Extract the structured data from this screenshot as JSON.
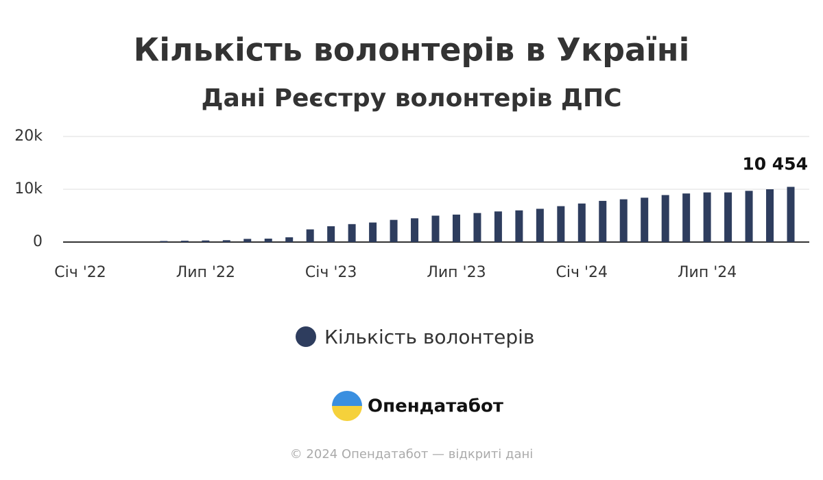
{
  "chart_data": {
    "type": "bar",
    "title": "Кількість волонтерів в Україні",
    "subtitle": "Дані Реєстру волонтерів ДПС",
    "categories": [
      "Січ '22",
      null,
      null,
      null,
      null,
      null,
      "Лип '22",
      null,
      null,
      null,
      null,
      null,
      "Січ '23",
      null,
      null,
      null,
      null,
      null,
      "Лип '23",
      null,
      null,
      null,
      null,
      null,
      "Січ '24",
      null,
      null,
      null,
      null,
      null,
      "Лип '24",
      null,
      null,
      null,
      null
    ],
    "series": [
      {
        "name": "Кількість волонтерів",
        "color": "#2e3d5e",
        "values": [
          0,
          0,
          0,
          0,
          200,
          250,
          300,
          350,
          600,
          650,
          900,
          2400,
          3000,
          3400,
          3700,
          4200,
          4500,
          5000,
          5200,
          5500,
          5800,
          6000,
          6300,
          6800,
          7300,
          7800,
          8100,
          8400,
          8900,
          9200,
          9400,
          9400,
          9700,
          10000,
          10454
        ],
        "value_labels": [
          null,
          null,
          null,
          null,
          null,
          null,
          null,
          null,
          null,
          null,
          null,
          null,
          null,
          null,
          null,
          null,
          null,
          null,
          null,
          null,
          null,
          null,
          null,
          null,
          null,
          null,
          null,
          null,
          null,
          null,
          null,
          null,
          null,
          null,
          "10 454"
        ]
      }
    ],
    "ylim": [
      0,
      20000
    ],
    "yticks": [
      {
        "value": 0,
        "label": "0"
      },
      {
        "value": 10000,
        "label": "10k"
      },
      {
        "value": 20000,
        "label": "20k"
      }
    ],
    "grid": true,
    "legend": "bottom"
  },
  "brand": "Опендатабот",
  "copyright": "© 2024 Опендатабот — відкриті дані"
}
